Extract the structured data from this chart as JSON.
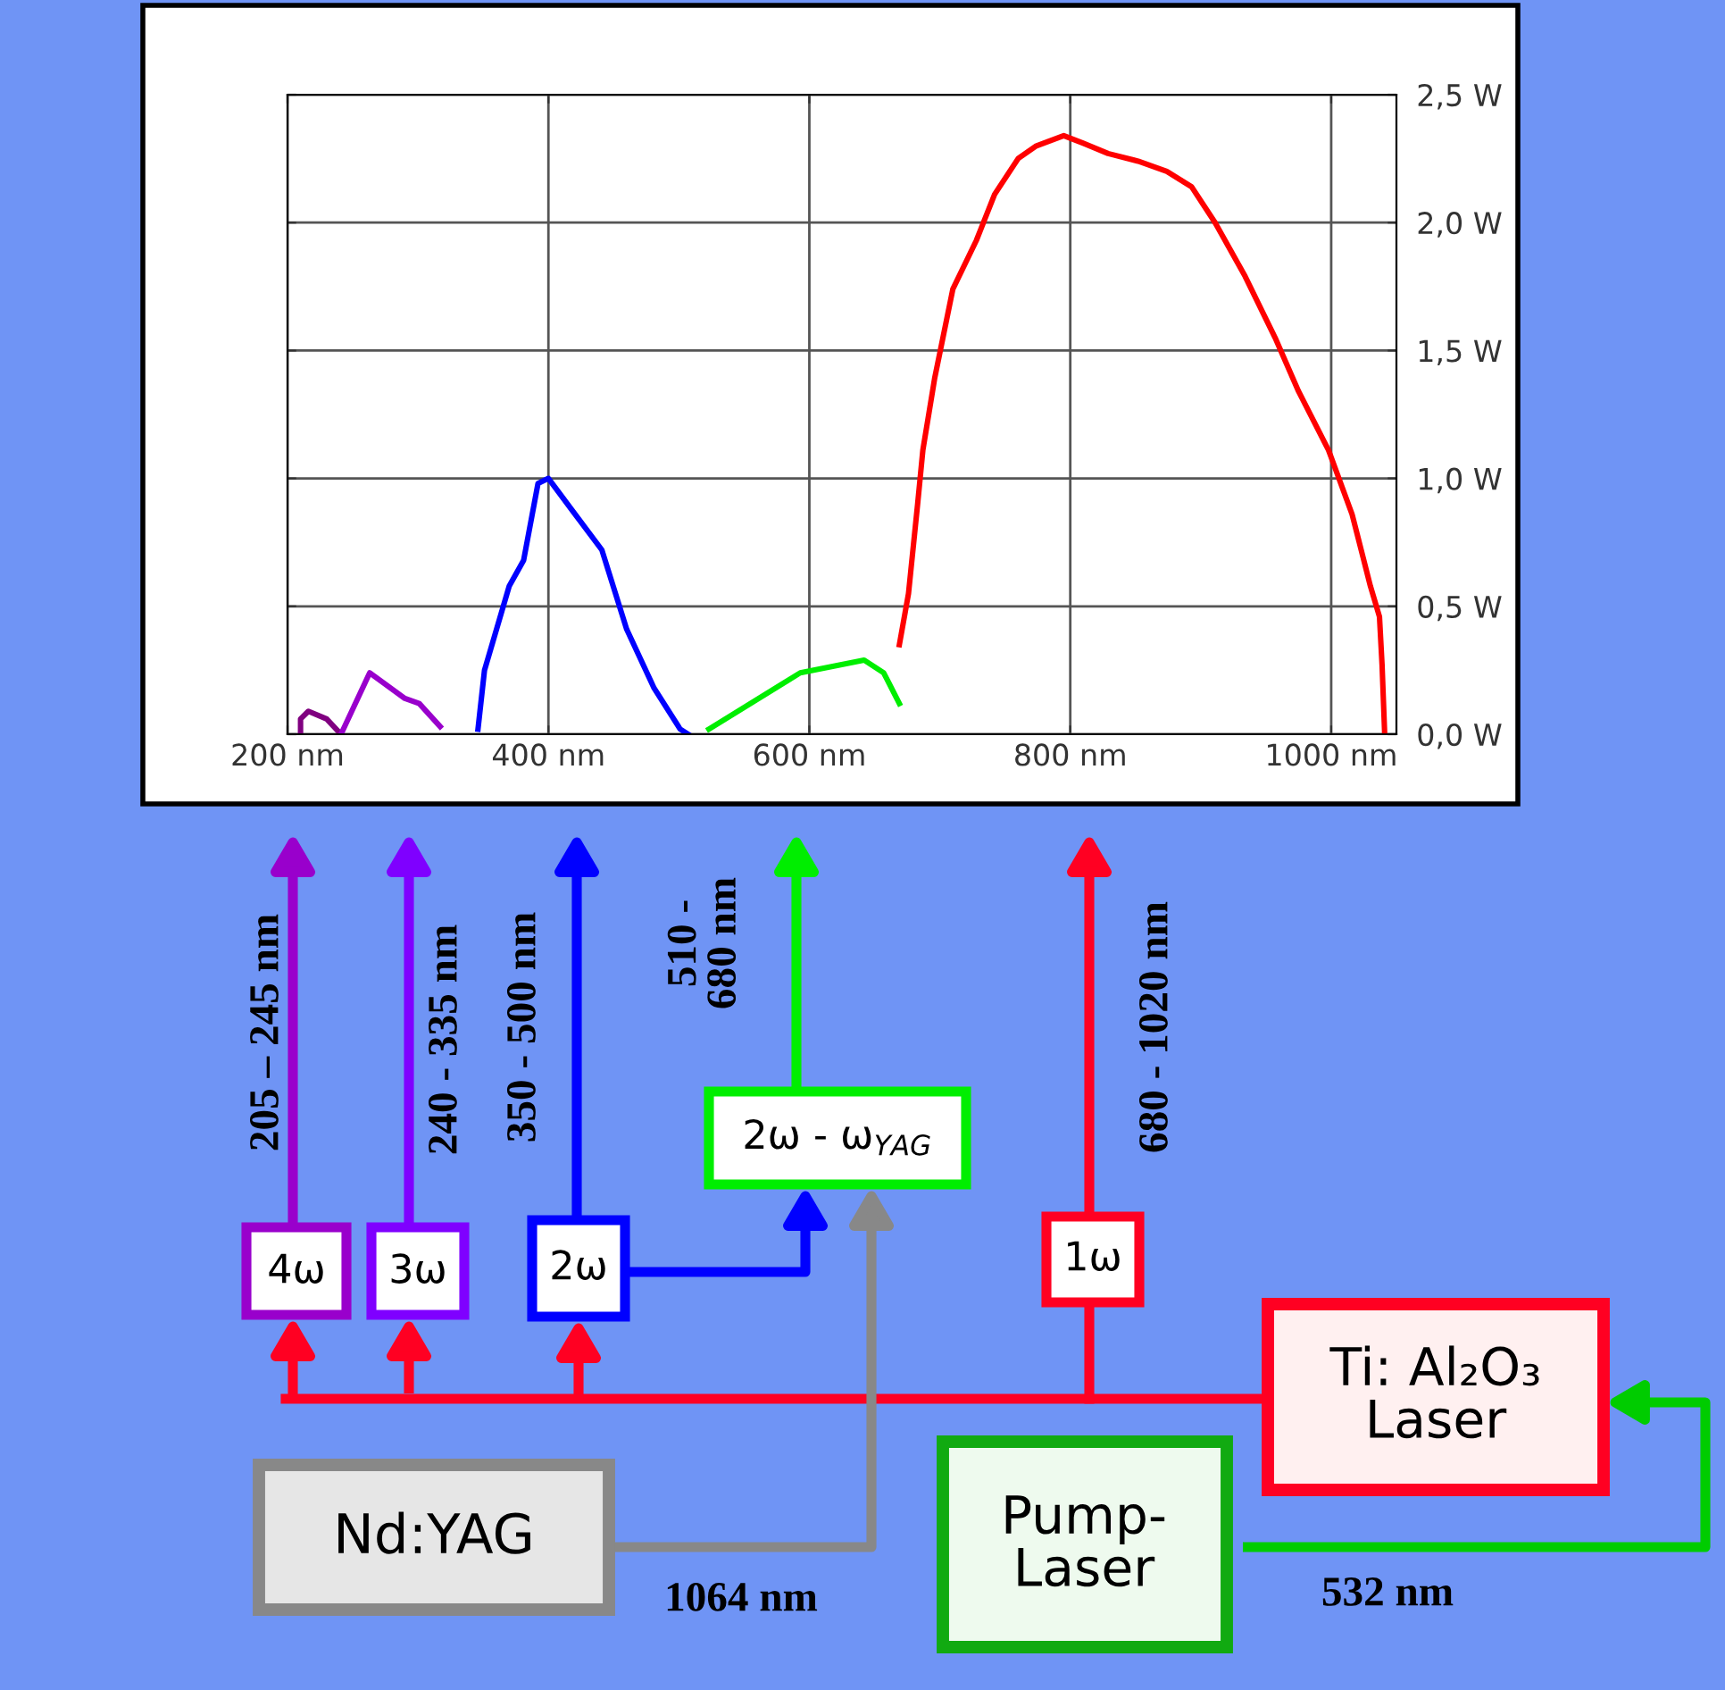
{
  "chart_data": {
    "type": "line",
    "xlim": [
      200,
      1050
    ],
    "ylim": [
      0,
      2.5
    ],
    "xticks": [
      {
        "value": 200,
        "label": "200 nm"
      },
      {
        "value": 400,
        "label": "400 nm"
      },
      {
        "value": 600,
        "label": "600 nm"
      },
      {
        "value": 800,
        "label": "800 nm"
      },
      {
        "value": 1000,
        "label": "1000 nm"
      }
    ],
    "yticks": [
      {
        "value": 0,
        "label": "0,0 W"
      },
      {
        "value": 0.5,
        "label": "0,5 W"
      },
      {
        "value": 1.0,
        "label": "1,0 W"
      },
      {
        "value": 1.5,
        "label": "1,5 W"
      },
      {
        "value": 2.0,
        "label": "2,0 W"
      },
      {
        "value": 2.5,
        "label": "2,5 W"
      }
    ],
    "grid": true,
    "series": [
      {
        "color": "#800080",
        "x": [
          210,
          210,
          216,
          230,
          241
        ],
        "values": [
          0,
          0.06,
          0.09,
          0.06,
          0
        ]
      },
      {
        "color": "#9900cc",
        "x": [
          241,
          263,
          290,
          301,
          317
        ],
        "values": [
          0,
          0.24,
          0.14,
          0.12,
          0.03
        ]
      },
      {
        "color": "#0000ff",
        "x": [
          346,
          351,
          370,
          381,
          392,
          400,
          419,
          441,
          460,
          481,
          501,
          507
        ],
        "values": [
          0.02,
          0.25,
          0.58,
          0.68,
          0.98,
          1.0,
          0.87,
          0.72,
          0.41,
          0.18,
          0.02,
          0
        ]
      },
      {
        "color": "#00ee00",
        "x": [
          523,
          593,
          642,
          657,
          669
        ],
        "values": [
          0.02,
          0.24,
          0.29,
          0.24,
          0.12
        ]
      },
      {
        "color": "#ff0000",
        "x": [
          669,
          676,
          683,
          687,
          696,
          710,
          728,
          742,
          760,
          774,
          795,
          810,
          829,
          852,
          874,
          893,
          911,
          934,
          957,
          975,
          998,
          1016,
          1030,
          1037,
          1039,
          1041
        ],
        "values": [
          0.35,
          0.55,
          0.9,
          1.11,
          1.39,
          1.74,
          1.93,
          2.11,
          2.25,
          2.3,
          2.34,
          2.31,
          2.27,
          2.24,
          2.2,
          2.14,
          2.0,
          1.79,
          1.55,
          1.34,
          1.11,
          0.86,
          0.58,
          0.46,
          0.27,
          0
        ]
      }
    ],
    "tick_labels": "xy2",
    "annotations": [
      "4ω",
      "3ω",
      "2ω",
      "2ω - ω$_{YAG}$",
      "1ω",
      "Ti: Al₂O₃\nLaser",
      "Nd:YAG",
      "Pump-\nLaser",
      "205 – 245 nm",
      "240 - 335 nm",
      "350 - 500 nm",
      "510 -\n680 nm",
      "680 - 1020 nm",
      "1064 nm",
      "532 nm"
    ]
  }
}
